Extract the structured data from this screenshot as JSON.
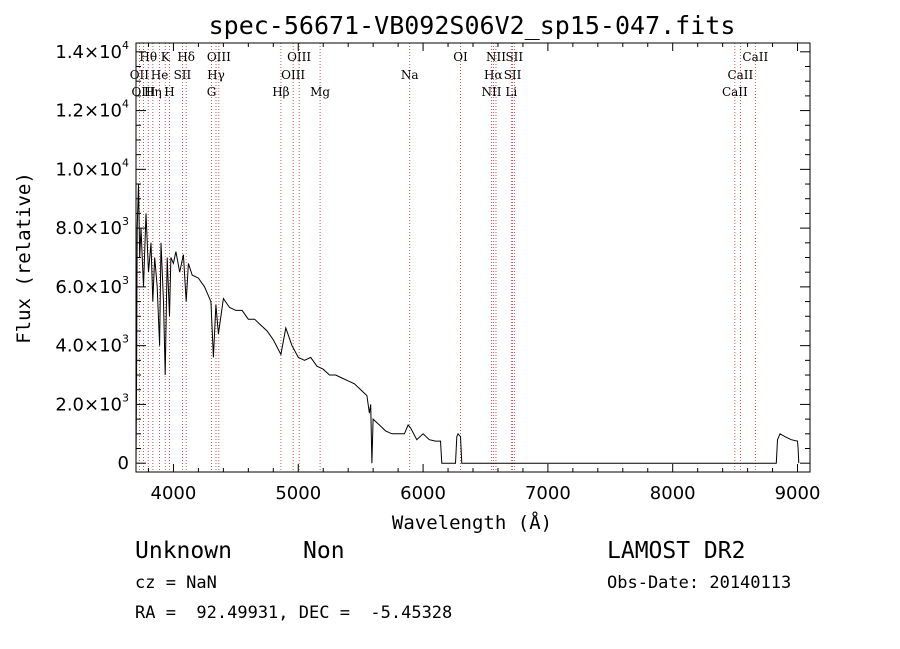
{
  "chart_data": {
    "type": "line",
    "title": "spec-56671-VB092S06V2_sp15-047.fits",
    "xlabel": "Wavelength (Å)",
    "ylabel": "Flux (relative)",
    "xlim": [
      3700,
      9100
    ],
    "ylim": [
      -300,
      14300
    ],
    "x_ticks": [
      {
        "value": 4000,
        "label": "4000"
      },
      {
        "value": 5000,
        "label": "5000"
      },
      {
        "value": 6000,
        "label": "6000"
      },
      {
        "value": 7000,
        "label": "7000"
      },
      {
        "value": 8000,
        "label": "8000"
      },
      {
        "value": 9000,
        "label": "9000"
      }
    ],
    "y_ticks": [
      {
        "value": 0,
        "base": "0",
        "exp": ""
      },
      {
        "value": 2000,
        "base": "2.0×10",
        "exp": "3"
      },
      {
        "value": 4000,
        "base": "4.0×10",
        "exp": "3"
      },
      {
        "value": 6000,
        "base": "6.0×10",
        "exp": "3"
      },
      {
        "value": 8000,
        "base": "8.0×10",
        "exp": "3"
      },
      {
        "value": 10000,
        "base": "1.0×10",
        "exp": "4"
      },
      {
        "value": 12000,
        "base": "1.2×10",
        "exp": "4"
      },
      {
        "value": 14000,
        "base": "1.4×10",
        "exp": "4"
      }
    ],
    "series": [
      {
        "name": "flux",
        "x": [
          3700,
          3705,
          3710,
          3720,
          3730,
          3740,
          3760,
          3780,
          3800,
          3820,
          3835,
          3850,
          3870,
          3889,
          3900,
          3920,
          3934,
          3950,
          3968,
          3980,
          4000,
          4020,
          4050,
          4080,
          4102,
          4120,
          4150,
          4200,
          4250,
          4300,
          4320,
          4340,
          4360,
          4400,
          4450,
          4500,
          4550,
          4600,
          4650,
          4700,
          4750,
          4800,
          4861,
          4900,
          4950,
          5000,
          5050,
          5100,
          5150,
          5200,
          5250,
          5300,
          5350,
          5400,
          5450,
          5500,
          5550,
          5570,
          5580,
          5590,
          5600,
          5650,
          5700,
          5750,
          5800,
          5850,
          5880,
          5900,
          5950,
          6000,
          6050,
          6100,
          6140,
          6150,
          6200,
          6260,
          6270,
          6280,
          6300,
          6310,
          6320,
          6400,
          6500,
          6600,
          6700,
          6800,
          6900,
          7000,
          7200,
          7400,
          7600,
          7800,
          8000,
          8200,
          8400,
          8600,
          8800,
          8830,
          8840,
          8860,
          8900,
          8950,
          9000,
          9005,
          9010
        ],
        "y": [
          0,
          3000,
          8000,
          9500,
          7000,
          8000,
          6000,
          8500,
          6500,
          7500,
          5500,
          7000,
          6000,
          4000,
          7500,
          5500,
          3000,
          7000,
          5000,
          7000,
          6800,
          7200,
          6500,
          7100,
          5500,
          6800,
          6400,
          6300,
          6000,
          5500,
          3600,
          5400,
          4400,
          5600,
          5300,
          5200,
          5200,
          4900,
          4900,
          4700,
          4500,
          4200,
          3700,
          4600,
          4000,
          3600,
          3500,
          3600,
          3300,
          3200,
          3000,
          3000,
          2900,
          2800,
          2700,
          2500,
          2300,
          1700,
          2000,
          0,
          1500,
          1300,
          1100,
          1000,
          1000,
          1000,
          1300,
          1200,
          800,
          1000,
          800,
          750,
          750,
          0,
          0,
          0,
          900,
          1000,
          900,
          0,
          0,
          0,
          0,
          0,
          0,
          0,
          0,
          0,
          0,
          0,
          0,
          0,
          0,
          0,
          0,
          0,
          0,
          0,
          800,
          1000,
          900,
          800,
          750,
          500,
          0
        ]
      }
    ],
    "lines": [
      {
        "label": "Hθ",
        "wave": 3798,
        "row": 0
      },
      {
        "label": "K",
        "wave": 3934,
        "row": 0
      },
      {
        "label": "Hδ",
        "wave": 4102,
        "row": 0
      },
      {
        "label": "OIII",
        "wave": 4364,
        "row": 0
      },
      {
        "label": "OIII",
        "wave": 5007,
        "row": 0
      },
      {
        "label": "OI",
        "wave": 6300,
        "row": 0
      },
      {
        "label": "NII",
        "wave": 6584,
        "row": 0
      },
      {
        "label": "SII",
        "wave": 6731,
        "row": 0
      },
      {
        "label": "CaII",
        "wave": 8662,
        "row": 0
      },
      {
        "label": "OII",
        "wave": 3727,
        "row": 1
      },
      {
        "label": "He",
        "wave": 3889,
        "row": 1
      },
      {
        "label": "SII",
        "wave": 4072,
        "row": 1
      },
      {
        "label": "Hγ",
        "wave": 4341,
        "row": 1
      },
      {
        "label": "OIII",
        "wave": 4959,
        "row": 1
      },
      {
        "label": "Hα",
        "wave": 6563,
        "row": 1
      },
      {
        "label": "SII",
        "wave": 6717,
        "row": 1
      },
      {
        "label": "CaII",
        "wave": 8542,
        "row": 1
      },
      {
        "label": "OIII",
        "wave": 3760,
        "row": 2
      },
      {
        "label": "Hη",
        "wave": 3835,
        "row": 2
      },
      {
        "label": "H",
        "wave": 3968,
        "row": 2
      },
      {
        "label": "G",
        "wave": 4305,
        "row": 2
      },
      {
        "label": "Hβ",
        "wave": 4861,
        "row": 2
      },
      {
        "label": "Mg",
        "wave": 5175,
        "row": 2
      },
      {
        "label": "Na",
        "wave": 5893,
        "row": 1
      },
      {
        "label": "NII",
        "wave": 6548,
        "row": 2
      },
      {
        "label": "Li",
        "wave": 6707,
        "row": 2
      },
      {
        "label": "CaII",
        "wave": 8498,
        "row": 2
      }
    ],
    "colors": {
      "axes": "#000000",
      "series": "#000000",
      "line_markers": "#b03030"
    }
  },
  "info": {
    "class_name": "Unknown",
    "subclass": "Non",
    "survey": "LAMOST DR2",
    "cz": "cz = NaN",
    "obs_date": "Obs-Date: 20140113",
    "coords": "RA =  92.49931, DEC =  -5.45328"
  }
}
